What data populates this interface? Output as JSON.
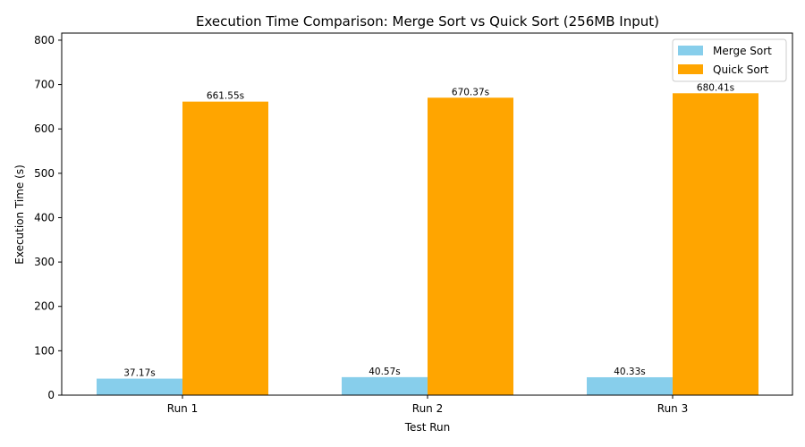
{
  "chart_data": {
    "type": "bar",
    "title": "Execution Time Comparison: Merge Sort vs Quick Sort (256MB Input)",
    "xlabel": "Test Run",
    "ylabel": "Execution Time (s)",
    "categories": [
      "Run 1",
      "Run 2",
      "Run 3"
    ],
    "series": [
      {
        "name": "Merge Sort",
        "values": [
          37.17,
          40.57,
          40.33
        ],
        "color": "#87ceeb",
        "labels": [
          "37.17s",
          "40.57s",
          "40.33s"
        ]
      },
      {
        "name": "Quick Sort",
        "values": [
          661.55,
          670.37,
          680.41
        ],
        "color": "#ffa500",
        "labels": [
          "661.55s",
          "670.37s",
          "680.41s"
        ]
      }
    ],
    "ylim": [
      0,
      816
    ],
    "yticks": [
      0,
      100,
      200,
      300,
      400,
      500,
      600,
      700,
      800
    ],
    "legend_position": "top-right",
    "grid": false
  }
}
